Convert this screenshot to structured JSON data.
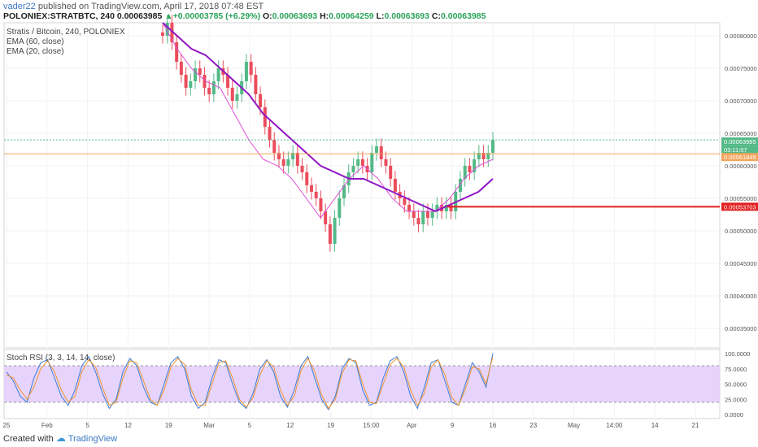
{
  "header": {
    "author": "vader22",
    "published": "published on TradingView.com, April 17, 2018 07:48 EST",
    "symbol": "POLONIEX:STRATBTC, 240",
    "last": "0.00063985",
    "change_arrow": "▲",
    "change": "+0.00003785 (+6.29%)",
    "o_label": "O:",
    "o_value": "0.00063693",
    "h_label": "H:",
    "h_value": "0.00064259",
    "l_label": "L:",
    "l_value": "0.00063693",
    "c_label": "C:",
    "c_value": "0.00063985"
  },
  "legend": {
    "title": "Stratis / Bitcoin, 240, POLONIEX",
    "ema60": "EMA (60, close)",
    "ema20": "EMA (20, close)",
    "stoch": "Stoch RSI (3, 3, 14, 14, close)"
  },
  "footer": {
    "created": "Created with",
    "brand": "TradingView"
  },
  "colors": {
    "up": "#53b987",
    "down": "#eb4d5c",
    "ema60": "#9015c4",
    "ema20": "#e04ed8",
    "orange_line": "#f2a55d",
    "red_line": "#e21f1f",
    "green_label": "#53b987",
    "rsi_fill": "#e2ccfb"
  },
  "chart_data": [
    {
      "type": "candlestick",
      "title": "Stratis / Bitcoin, 240, POLONIEX",
      "ylim": [
        0.00032,
        0.00082
      ],
      "y_ticks": [
        "0.00080000",
        "0.00075000",
        "0.00070000",
        "0.00065000",
        "0.00060000",
        "0.00055000",
        "0.00050000",
        "0.00045000",
        "0.00040000",
        "0.00035000"
      ],
      "x_ticks": [
        "25",
        "Feb",
        "5",
        "12",
        "19",
        "Mar",
        "5",
        "12",
        "19",
        "15:00",
        "Apr",
        "9",
        "16",
        "23",
        "May",
        "14:00",
        "14",
        "21"
      ],
      "price_labels": [
        {
          "value": "0.00063985",
          "color": "#53b987"
        },
        {
          "value": "03:11:07",
          "color": "#53b987"
        },
        {
          "value": "0.00061849",
          "color": "#f2a55d"
        },
        {
          "value": "0.00053703",
          "color": "#e21f1f"
        }
      ],
      "horizontal_lines": [
        {
          "value": 0.00061849,
          "color": "#f2a55d",
          "label": ""
        },
        {
          "value": 0.00053703,
          "color": "#e21f1f",
          "label": ""
        },
        {
          "value": 0.00063985,
          "color": "#53b987",
          "label": ""
        }
      ],
      "close_path": [
        0.0008,
        0.00082,
        0.00079,
        0.00076,
        0.00074,
        0.00072,
        0.00073,
        0.00075,
        0.00074,
        0.00072,
        0.00071,
        0.00073,
        0.00075,
        0.00074,
        0.00072,
        0.0007,
        0.00071,
        0.00073,
        0.00076,
        0.00074,
        0.00071,
        0.00069,
        0.00066,
        0.00064,
        0.00062,
        0.00061,
        0.0006,
        0.00061,
        0.00062,
        0.0006,
        0.00059,
        0.00057,
        0.00056,
        0.00055,
        0.00053,
        0.00051,
        0.00048,
        0.00052,
        0.00055,
        0.00057,
        0.00059,
        0.0006,
        0.00061,
        0.0006,
        0.00059,
        0.00062,
        0.00063,
        0.00061,
        0.0006,
        0.00058,
        0.00056,
        0.00055,
        0.00054,
        0.00053,
        0.00052,
        0.00051,
        0.00053,
        0.00052,
        0.00053,
        0.00054,
        0.00053,
        0.00054,
        0.00053,
        0.00056,
        0.00058,
        0.0006,
        0.00059,
        0.00061,
        0.00062,
        0.00061,
        0.00062,
        0.00063985
      ],
      "ema60": [
        0.00082,
        0.0008,
        0.00078,
        0.00077,
        0.00075,
        0.00073,
        0.00071,
        0.00068,
        0.00066,
        0.00064,
        0.00062,
        0.0006,
        0.00059,
        0.00058,
        0.00058,
        0.00057,
        0.00056,
        0.00055,
        0.00054,
        0.00053,
        0.00054,
        0.00055,
        0.00056,
        0.00058
      ],
      "ema20": [
        0.00082,
        0.00078,
        0.00075,
        0.00073,
        0.00072,
        0.00068,
        0.00064,
        0.00061,
        0.0006,
        0.00058,
        0.00055,
        0.00052,
        0.00055,
        0.00058,
        0.0006,
        0.00058,
        0.00055,
        0.00053,
        0.00053,
        0.00053,
        0.00055,
        0.00058,
        0.0006,
        0.00061
      ]
    },
    {
      "type": "line",
      "title": "Stoch RSI (3, 3, 14, 14, close)",
      "ylim": [
        0,
        100
      ],
      "y_ticks": [
        "100.0000",
        "75.0000",
        "50.0000",
        "25.0000",
        "0.0000"
      ],
      "band": [
        20,
        80
      ],
      "series": [
        {
          "name": "K",
          "color": "#3a7bd5",
          "values": [
            70,
            55,
            30,
            20,
            60,
            85,
            90,
            60,
            30,
            15,
            40,
            80,
            95,
            70,
            35,
            10,
            25,
            70,
            92,
            80,
            45,
            20,
            15,
            50,
            85,
            95,
            75,
            30,
            10,
            20,
            60,
            90,
            85,
            50,
            20,
            10,
            35,
            75,
            90,
            70,
            30,
            12,
            40,
            80,
            95,
            60,
            25,
            8,
            30,
            75,
            92,
            85,
            40,
            15,
            20,
            60,
            88,
            95,
            70,
            30,
            10,
            45,
            85,
            90,
            55,
            20,
            15,
            50,
            85,
            70,
            45,
            100
          ]
        },
        {
          "name": "D",
          "color": "#f0932b",
          "values": [
            65,
            60,
            40,
            25,
            45,
            75,
            88,
            70,
            40,
            20,
            30,
            70,
            90,
            78,
            45,
            15,
            20,
            60,
            88,
            85,
            55,
            25,
            15,
            40,
            78,
            92,
            82,
            40,
            15,
            15,
            50,
            85,
            88,
            60,
            25,
            12,
            28,
            65,
            88,
            78,
            40,
            15,
            30,
            72,
            92,
            70,
            32,
            10,
            25,
            68,
            90,
            88,
            50,
            20,
            18,
            50,
            82,
            92,
            78,
            40,
            15,
            35,
            78,
            90,
            65,
            28,
            15,
            42,
            78,
            75,
            50,
            95
          ]
        }
      ]
    }
  ]
}
